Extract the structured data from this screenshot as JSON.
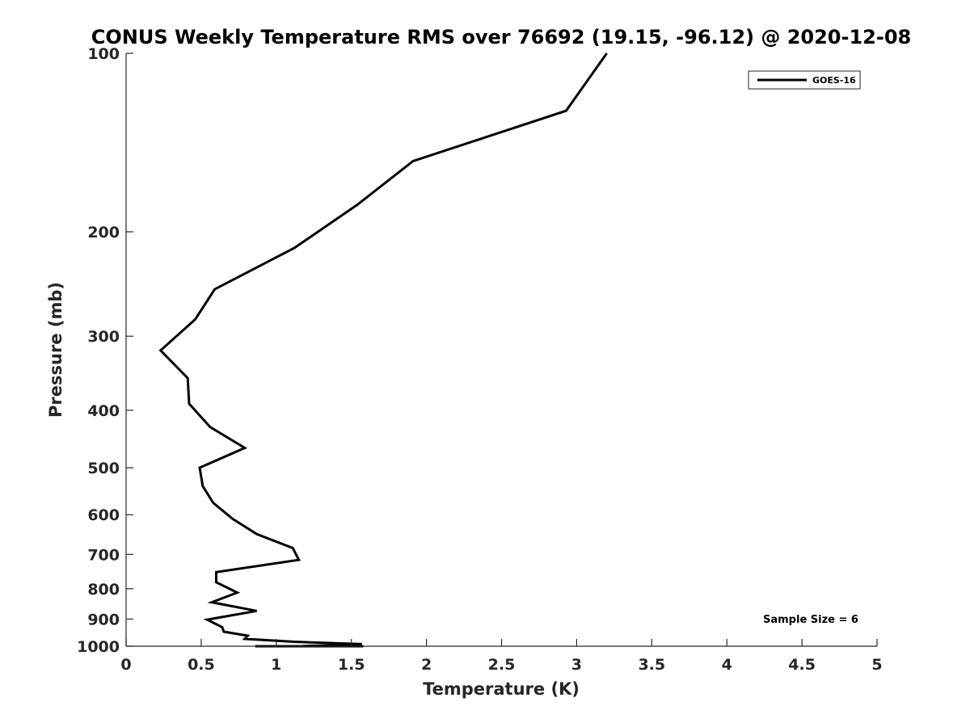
{
  "chart_data": {
    "type": "line",
    "title": "CONUS Weekly Temperature RMS over 76692 (19.15, -96.12) @ 2020-12-08",
    "xlabel": "Temperature (K)",
    "ylabel": "Pressure (mb)",
    "xlim": [
      0,
      5
    ],
    "ylim": [
      1000,
      100
    ],
    "y_scale": "log",
    "x_ticks": [
      "0",
      "0.5",
      "1",
      "1.5",
      "2",
      "2.5",
      "3",
      "3.5",
      "4",
      "4.5",
      "5"
    ],
    "y_ticks": [
      "100",
      "200",
      "300",
      "400",
      "500",
      "600",
      "700",
      "800",
      "900",
      "1000"
    ],
    "grid": false,
    "legend_position": "top-right",
    "annotation": "Sample Size = 6",
    "series": [
      {
        "name": "GOES-16",
        "color": "#000000",
        "points": [
          [
            3.2,
            100
          ],
          [
            2.93,
            125
          ],
          [
            1.91,
            152
          ],
          [
            1.54,
            180
          ],
          [
            1.12,
            213
          ],
          [
            0.59,
            250
          ],
          [
            0.46,
            281
          ],
          [
            0.23,
            317
          ],
          [
            0.41,
            353
          ],
          [
            0.42,
            390
          ],
          [
            0.56,
            427
          ],
          [
            0.79,
            463
          ],
          [
            0.49,
            500
          ],
          [
            0.51,
            537
          ],
          [
            0.58,
            573
          ],
          [
            0.71,
            610
          ],
          [
            0.87,
            647
          ],
          [
            1.11,
            683
          ],
          [
            1.15,
            715
          ],
          [
            0.6,
            750
          ],
          [
            0.6,
            780
          ],
          [
            0.74,
            812
          ],
          [
            0.57,
            843
          ],
          [
            0.87,
            872
          ],
          [
            0.54,
            902
          ],
          [
            0.64,
            929
          ],
          [
            0.65,
            945
          ],
          [
            0.81,
            960
          ],
          [
            0.79,
            972
          ],
          [
            1.12,
            983
          ],
          [
            1.57,
            992
          ],
          [
            1.48,
            996
          ],
          [
            1.24,
            998
          ],
          [
            1.18,
            999
          ],
          [
            1.39,
            1000
          ],
          [
            1.05,
            1000
          ],
          [
            0.94,
            1000
          ],
          [
            1.09,
            1000
          ],
          [
            1.34,
            1000
          ],
          [
            1.25,
            1000
          ],
          [
            0.86,
            1000
          ],
          [
            0.91,
            1000
          ],
          [
            1.58,
            1000
          ]
        ]
      }
    ]
  }
}
